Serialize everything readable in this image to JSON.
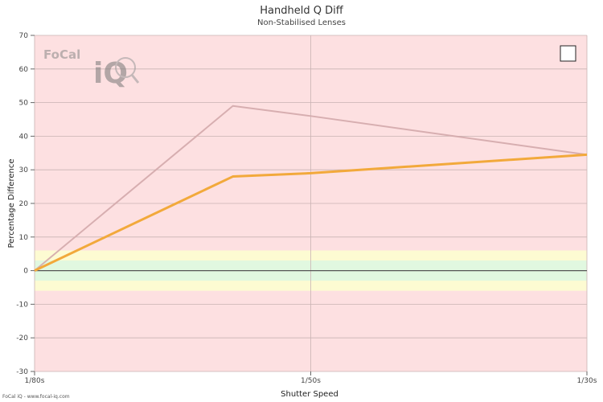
{
  "chart_data": {
    "type": "line",
    "title": "Handheld Q Diff",
    "subtitle": "Non-Stabilised Lenses",
    "xlabel": "Shutter Speed",
    "ylabel": "Percentage Difference",
    "categories": [
      "1/80s",
      "",
      "1/50s",
      "1/30s"
    ],
    "x_ticks": [
      "1/80s",
      "1/50s",
      "1/30s"
    ],
    "ylim": [
      -30,
      70
    ],
    "y_ticks": [
      -30,
      -20,
      -10,
      0,
      10,
      20,
      30,
      40,
      50,
      60,
      70
    ],
    "grid": true,
    "bands": [
      {
        "from": -6,
        "to": 6,
        "color": "#fdfbd2"
      },
      {
        "from": -3,
        "to": 3,
        "color": "#e1f8e0"
      }
    ],
    "background_color": "#fde0e1",
    "zero_line_color": "#555555",
    "series": [
      {
        "values": [
          0,
          49,
          46,
          34.5
        ],
        "color": "#d3a8ab"
      },
      {
        "values": [
          0,
          28,
          29,
          34.5
        ],
        "color": "#f2a93b"
      }
    ]
  },
  "legend": {
    "box": ""
  },
  "logo": {
    "brand": "FoCal",
    "mark": "iQ"
  },
  "footer": {
    "text": "FoCal iQ - www.focal-iq.com"
  }
}
